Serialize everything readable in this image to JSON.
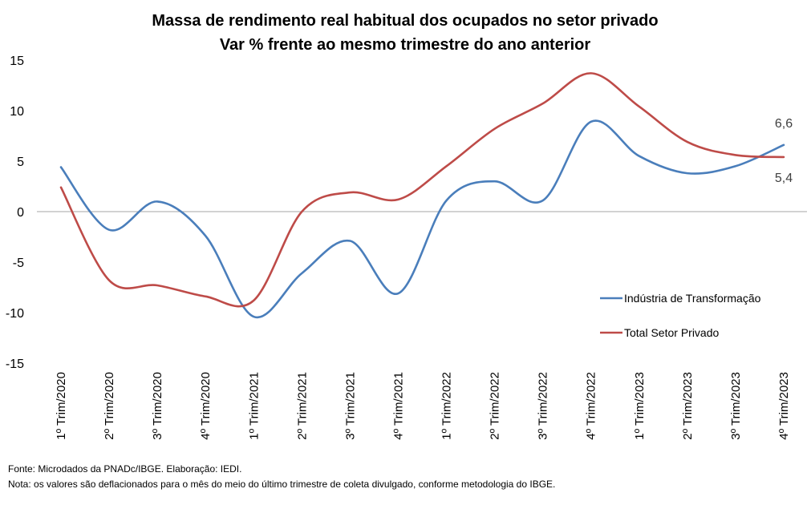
{
  "chart_data": {
    "type": "line",
    "title": "Massa de rendimento real habitual dos ocupados no setor privado",
    "subtitle": "Var % frente ao mesmo trimestre do ano anterior",
    "xlabel": "",
    "ylabel": "",
    "ylim": [
      -15,
      15
    ],
    "yticks": [
      15,
      10,
      5,
      0,
      -5,
      -10,
      -15
    ],
    "grid": false,
    "legend_position": "right",
    "categories": [
      "1º Trim/2020",
      "2º Trim/2020",
      "3º Trim/2020",
      "4º Trim/2020",
      "1º Trim/2021",
      "2º Trim/2021",
      "3º Trim/2021",
      "4º Trim/2021",
      "1º Trim/2022",
      "2º Trim/2022",
      "3º Trim/2022",
      "4º Trim/2022",
      "1º Trim/2023",
      "2º Trim/2023",
      "3º Trim/2023",
      "4º Trim/2023"
    ],
    "series": [
      {
        "name": "Indústria de Transformação",
        "color": "#4a7ebb",
        "values": [
          4.4,
          -1.8,
          1.0,
          -2.4,
          -10.4,
          -6.1,
          -2.9,
          -8.1,
          1.1,
          3.0,
          1.1,
          8.9,
          5.5,
          3.8,
          4.5,
          6.6
        ],
        "end_label": "6,6"
      },
      {
        "name": "Total Setor Privado",
        "color": "#be4b48",
        "values": [
          2.4,
          -6.8,
          -7.3,
          -8.4,
          -8.8,
          0.0,
          1.9,
          1.2,
          4.5,
          8.2,
          10.7,
          13.7,
          10.4,
          6.9,
          5.6,
          5.4
        ],
        "end_label": "5,4"
      }
    ]
  },
  "footer": {
    "source": "Fonte: Microdados da PNADc/IBGE. Elaboração: IEDI.",
    "note": "Nota: os valores são deflacionados para o mês do meio do último trimestre de coleta divulgado, conforme metodologia do IBGE."
  }
}
